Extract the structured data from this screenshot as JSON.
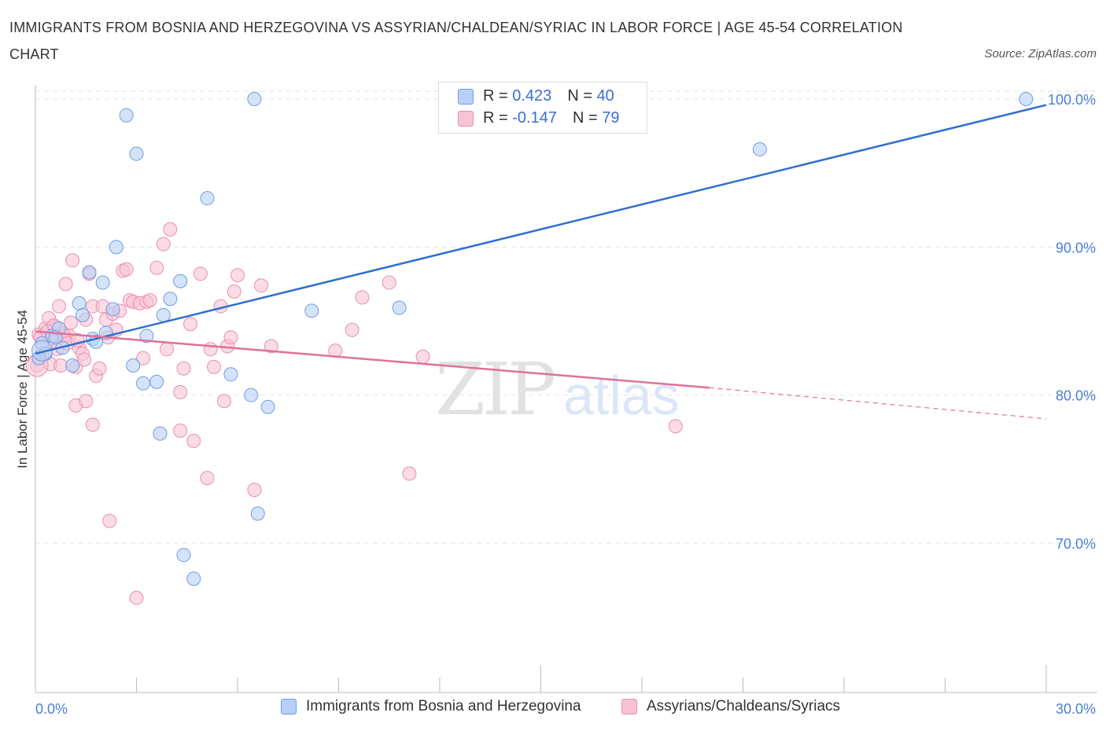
{
  "title": "IMMIGRANTS FROM BOSNIA AND HERZEGOVINA VS ASSYRIAN/CHALDEAN/SYRIAC IN LABOR FORCE | AGE 45-54 CORRELATION CHART",
  "source": "Source: ZipAtlas.com",
  "colors": {
    "blue_fill": "#b7d0f5",
    "blue_stroke": "#6f9de3",
    "blue_line": "#2f6fd0",
    "pink_fill": "#f8c3d3",
    "pink_stroke": "#e98fae",
    "pink_line": "#e0709a",
    "axis_text": "#4a7fd4",
    "grid": "#e3e3e3"
  },
  "legend": {
    "rows": [
      {
        "r_label": "R = ",
        "r_value": "0.423",
        "n_label": "N = ",
        "n_value": "40"
      },
      {
        "r_label": "R = ",
        "r_value": "-0.147",
        "n_label": "N = ",
        "n_value": "79"
      }
    ]
  },
  "bottom_legend": [
    {
      "label": "Immigrants from Bosnia and Herzegovina"
    },
    {
      "label": "Assyrians/Chaldeans/Syriacs"
    }
  ],
  "chart_data": {
    "type": "scatter",
    "title": "IMMIGRANTS FROM BOSNIA AND HERZEGOVINA VS ASSYRIAN/CHALDEAN/SYRIAC IN LABOR FORCE | AGE 45-54 CORRELATION CHART",
    "xlabel": "",
    "ylabel": "In Labor Force | Age 45-54",
    "xlim": [
      0,
      30
    ],
    "ylim": [
      61,
      101
    ],
    "x_tick_labels": [
      "0.0%",
      "30.0%"
    ],
    "y_ticks": [
      70,
      80,
      90,
      100
    ],
    "y_tick_labels": [
      "70.0%",
      "80.0%",
      "90.0%",
      "100.0%"
    ],
    "grid": true,
    "legend_position": "top-center",
    "watermark": "ZIPatlas",
    "series": [
      {
        "name": "Immigrants from Bosnia and Herzegovina",
        "color": "#6f9de3",
        "R": 0.423,
        "N": 40,
        "trend": {
          "x": [
            0,
            30
          ],
          "y": [
            82.8,
            99.6
          ]
        },
        "points": [
          [
            0.2,
            83.5
          ],
          [
            0.3,
            82.8
          ],
          [
            0.5,
            84.0
          ],
          [
            0.7,
            84.5
          ],
          [
            0.8,
            83.2
          ],
          [
            1.1,
            82.0
          ],
          [
            1.3,
            86.2
          ],
          [
            1.4,
            85.4
          ],
          [
            1.6,
            88.3
          ],
          [
            1.7,
            83.8
          ],
          [
            1.8,
            83.6
          ],
          [
            2.0,
            87.6
          ],
          [
            2.1,
            84.2
          ],
          [
            2.3,
            85.8
          ],
          [
            2.4,
            90.0
          ],
          [
            2.7,
            98.9
          ],
          [
            2.9,
            82.0
          ],
          [
            3.0,
            96.3
          ],
          [
            3.2,
            80.8
          ],
          [
            3.3,
            84.0
          ],
          [
            3.6,
            80.9
          ],
          [
            3.7,
            77.4
          ],
          [
            3.8,
            85.4
          ],
          [
            4.0,
            86.5
          ],
          [
            4.3,
            87.7
          ],
          [
            4.4,
            69.2
          ],
          [
            4.7,
            67.6
          ],
          [
            5.1,
            93.3
          ],
          [
            5.8,
            81.4
          ],
          [
            6.4,
            80.0
          ],
          [
            6.5,
            100.0
          ],
          [
            6.6,
            72.0
          ],
          [
            6.9,
            79.2
          ],
          [
            8.2,
            85.7
          ],
          [
            10.8,
            85.9
          ],
          [
            15.4,
            100.0
          ],
          [
            21.5,
            96.6
          ],
          [
            29.4,
            100.0
          ],
          [
            0.1,
            82.5
          ],
          [
            0.6,
            83.9
          ]
        ]
      },
      {
        "name": "Assyrians/Chaldeans/Syriacs",
        "color": "#e98fae",
        "R": -0.147,
        "N": 79,
        "trend": {
          "x": [
            0,
            20
          ],
          "y": [
            84.3,
            80.5
          ]
        },
        "trend_dashed": {
          "x": [
            20,
            30
          ],
          "y": [
            80.5,
            78.4
          ]
        },
        "points": [
          [
            0.05,
            82.0
          ],
          [
            0.1,
            84.1
          ],
          [
            0.2,
            82.8
          ],
          [
            0.3,
            84.5
          ],
          [
            0.4,
            85.2
          ],
          [
            0.5,
            83.6
          ],
          [
            0.6,
            84.6
          ],
          [
            0.7,
            86.0
          ],
          [
            0.8,
            84.2
          ],
          [
            0.9,
            87.5
          ],
          [
            1.0,
            84.0
          ],
          [
            1.1,
            89.1
          ],
          [
            1.2,
            81.9
          ],
          [
            1.2,
            79.3
          ],
          [
            1.3,
            83.2
          ],
          [
            1.4,
            82.8
          ],
          [
            1.5,
            79.6
          ],
          [
            1.5,
            85.1
          ],
          [
            1.6,
            88.2
          ],
          [
            1.7,
            86.0
          ],
          [
            1.7,
            78.0
          ],
          [
            1.8,
            81.3
          ],
          [
            1.9,
            81.8
          ],
          [
            2.0,
            86.0
          ],
          [
            2.1,
            85.1
          ],
          [
            2.2,
            71.5
          ],
          [
            2.3,
            85.5
          ],
          [
            2.4,
            84.4
          ],
          [
            2.5,
            85.7
          ],
          [
            2.6,
            88.4
          ],
          [
            2.7,
            88.5
          ],
          [
            2.8,
            86.4
          ],
          [
            2.9,
            86.3
          ],
          [
            3.0,
            66.3
          ],
          [
            3.1,
            86.2
          ],
          [
            3.3,
            86.3
          ],
          [
            3.4,
            86.4
          ],
          [
            3.6,
            88.6
          ],
          [
            3.8,
            90.2
          ],
          [
            3.9,
            83.1
          ],
          [
            4.0,
            91.2
          ],
          [
            4.3,
            80.2
          ],
          [
            4.3,
            77.6
          ],
          [
            4.4,
            81.8
          ],
          [
            4.7,
            76.9
          ],
          [
            4.9,
            88.2
          ],
          [
            5.1,
            74.4
          ],
          [
            5.2,
            83.1
          ],
          [
            5.3,
            81.9
          ],
          [
            5.5,
            86.0
          ],
          [
            5.6,
            79.6
          ],
          [
            5.7,
            83.3
          ],
          [
            5.8,
            83.9
          ],
          [
            5.9,
            87.0
          ],
          [
            6.0,
            88.1
          ],
          [
            6.5,
            73.6
          ],
          [
            6.7,
            87.4
          ],
          [
            7.0,
            83.3
          ],
          [
            8.9,
            83.0
          ],
          [
            9.4,
            84.4
          ],
          [
            9.7,
            86.6
          ],
          [
            10.5,
            87.6
          ],
          [
            11.1,
            74.7
          ],
          [
            11.5,
            82.6
          ],
          [
            19.0,
            77.9
          ],
          [
            0.15,
            83.9
          ],
          [
            0.35,
            84.3
          ],
          [
            0.45,
            82.1
          ],
          [
            0.55,
            84.7
          ],
          [
            0.65,
            83.1
          ],
          [
            0.75,
            82.0
          ],
          [
            0.85,
            84.0
          ],
          [
            0.95,
            83.5
          ],
          [
            1.05,
            84.9
          ],
          [
            1.25,
            83.7
          ],
          [
            1.45,
            82.4
          ],
          [
            2.15,
            83.9
          ],
          [
            3.2,
            82.5
          ],
          [
            4.6,
            84.8
          ]
        ]
      }
    ]
  }
}
